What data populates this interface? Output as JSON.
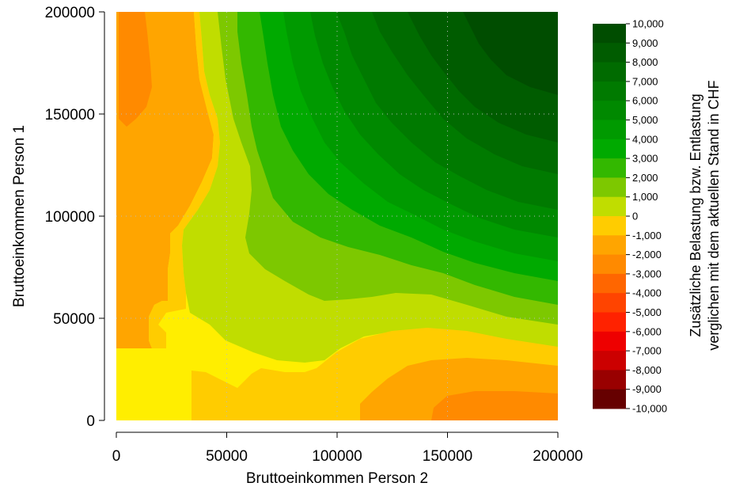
{
  "chart_data": {
    "type": "heatmap",
    "title": "",
    "xlabel": "Bruttoeinkommen Person 2",
    "ylabel": "Bruttoeinkommen Person 1",
    "xlim": [
      0,
      200000
    ],
    "ylim": [
      0,
      200000
    ],
    "x_ticks": [
      "0",
      "50000",
      "100000",
      "150000",
      "200000"
    ],
    "y_ticks": [
      "0",
      "50000",
      "100000",
      "150000",
      "200000"
    ],
    "grid": "dotted",
    "colorbar": {
      "title_line1": "Zusätzliche Belastung bzw. Entlastung",
      "title_line2": "verglichen mit dem aktuellen Stand in CHF",
      "position": "right",
      "labels": [
        "10,000",
        "9,000",
        "8,000",
        "7,000",
        "6,000",
        "5,000",
        "4,000",
        "3,000",
        "2,000",
        "1,000",
        "0",
        "-1,000",
        "-2,000",
        "-3,000",
        "-4,000",
        "-5,000",
        "-6,000",
        "-7,000",
        "-8,000",
        "-9,000",
        "-10,000"
      ],
      "colors": [
        "#004d00",
        "#005c00",
        "#006b00",
        "#007a00",
        "#008900",
        "#009a00",
        "#00aa00",
        "#33b800",
        "#7dc800",
        "#c0dd00",
        "#ffcc00",
        "#ffa500",
        "#ff8a00",
        "#ff6600",
        "#ff4400",
        "#ff2200",
        "#ee0000",
        "#cc0000",
        "#990000",
        "#660000"
      ]
    },
    "regions": [
      {
        "level": "-500",
        "color": "#ffee00"
      },
      {
        "level": "-2,000",
        "color": "#ffa500"
      },
      {
        "level": "-1,000",
        "color": "#ffcc00"
      },
      {
        "level": "-2,500",
        "color": "#ff8a00"
      },
      {
        "level": "500",
        "color": "#c0dd00"
      },
      {
        "level": "1,000",
        "color": "#7dc800"
      },
      {
        "level": "2,000",
        "color": "#33b800"
      },
      {
        "level": "3,000",
        "color": "#00aa00"
      },
      {
        "level": "4,000",
        "color": "#009a00"
      },
      {
        "level": "5,000",
        "color": "#008900"
      },
      {
        "level": "6,000",
        "color": "#007a00"
      },
      {
        "level": "7,000",
        "color": "#006b00"
      },
      {
        "level": "8,000",
        "color": "#005c00"
      },
      {
        "level": "9,000",
        "color": "#004d00"
      }
    ]
  }
}
